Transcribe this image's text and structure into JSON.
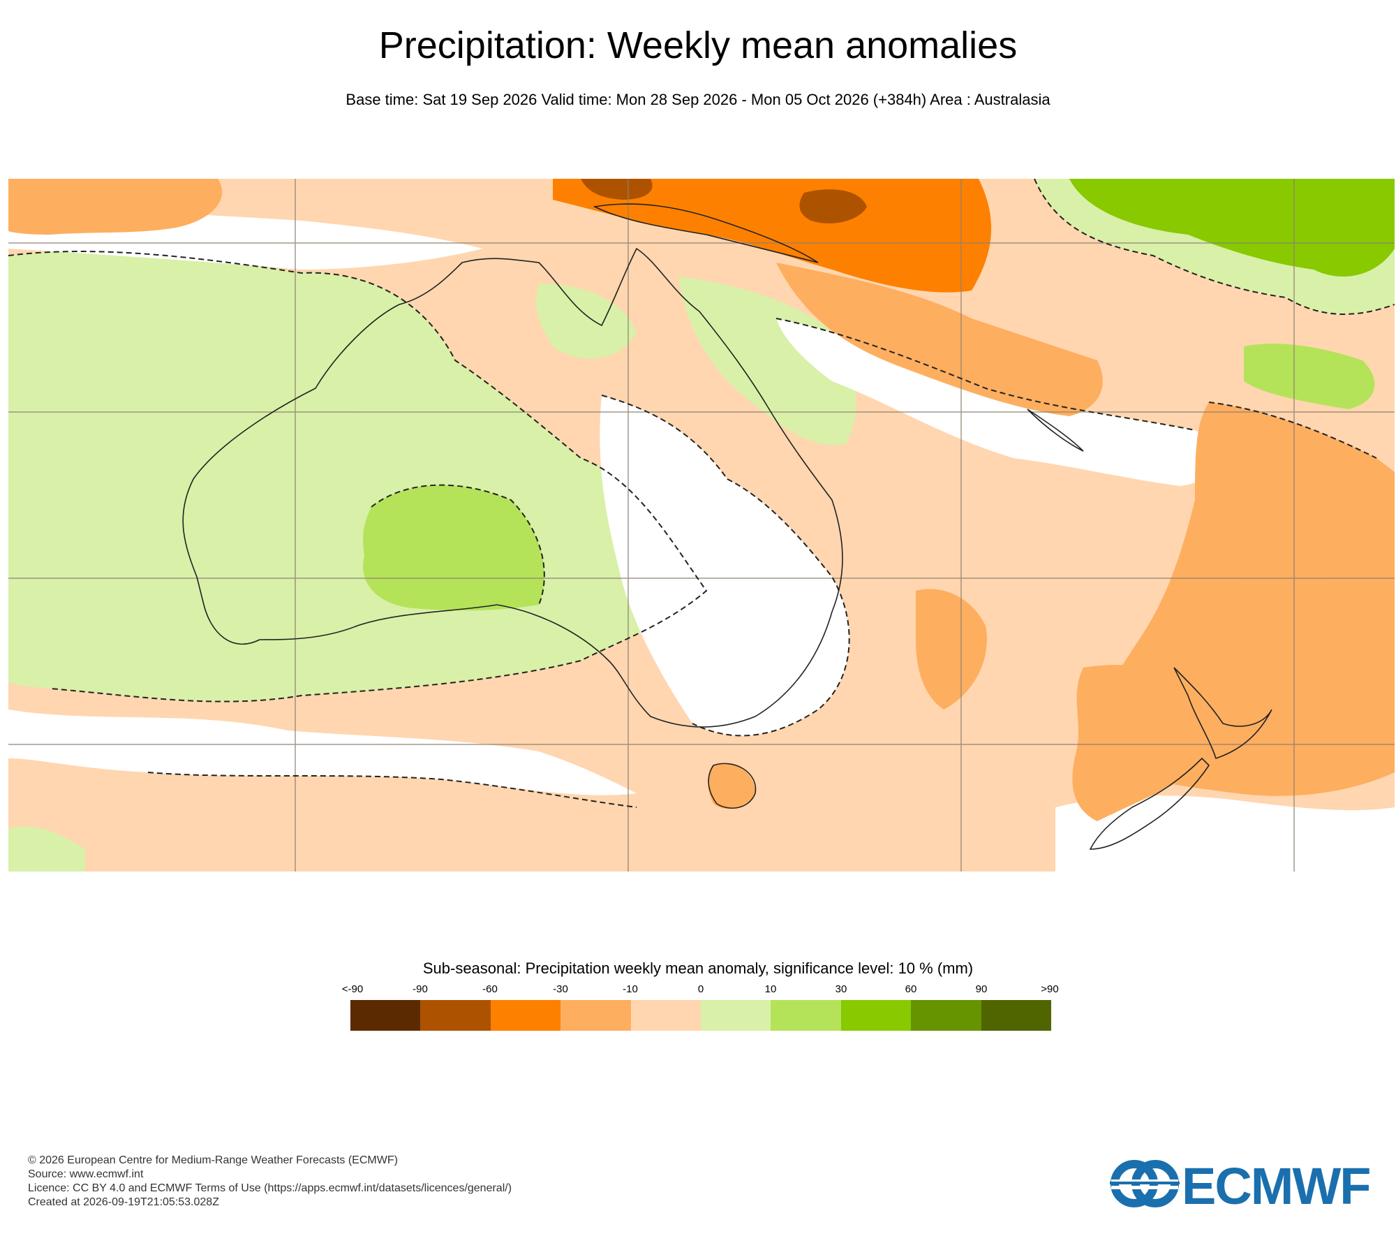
{
  "header": {
    "title": "Precipitation: Weekly mean anomalies",
    "subtitle": "Base time: Sat 19 Sep 2026 Valid time: Mon 28 Sep 2026 - Mon 05 Oct 2026 (+384h) Area : Australasia"
  },
  "map": {
    "area": "Australasia",
    "colors": {
      "dry_extreme": "#5c2a00",
      "dry_strong": "#ad5300",
      "dry_moderate": "#fe8000",
      "dry_weak": "#feae5f",
      "dry_slight": "#ffd6af",
      "neutral": "#ffffff",
      "wet_slight": "#d9f0a8",
      "wet_weak": "#b4e35a",
      "wet_moderate": "#88c900",
      "wet_strong": "#669400",
      "wet_extreme": "#506500",
      "coastline": "#222222",
      "grid": "#8c8070",
      "significance_contour": "#222222"
    }
  },
  "legend": {
    "title": "Sub-seasonal: Precipitation weekly mean anomaly, significance level: 10 % (mm)",
    "ticks": [
      "<-90",
      "-90",
      "-60",
      "-30",
      "-10",
      "0",
      "10",
      "30",
      "60",
      "90",
      ">90"
    ],
    "swatches": [
      "#5c2a00",
      "#ad5300",
      "#fe8000",
      "#feae5f",
      "#ffd6af",
      "#d9f0a8",
      "#b4e35a",
      "#88c900",
      "#669400",
      "#506500"
    ]
  },
  "footer": {
    "copyright": "© 2026 European Centre for Medium-Range Weather Forecasts (ECMWF)",
    "source": "Source: www.ecmwf.int",
    "licence": "Licence: CC BY 4.0 and ECMWF Terms of Use (https://apps.ecmwf.int/datasets/licences/general/)",
    "created": "Created at 2026-09-19T21:05:53.028Z"
  },
  "logo": {
    "text": "ECMWF",
    "color": "#1a6fae"
  }
}
